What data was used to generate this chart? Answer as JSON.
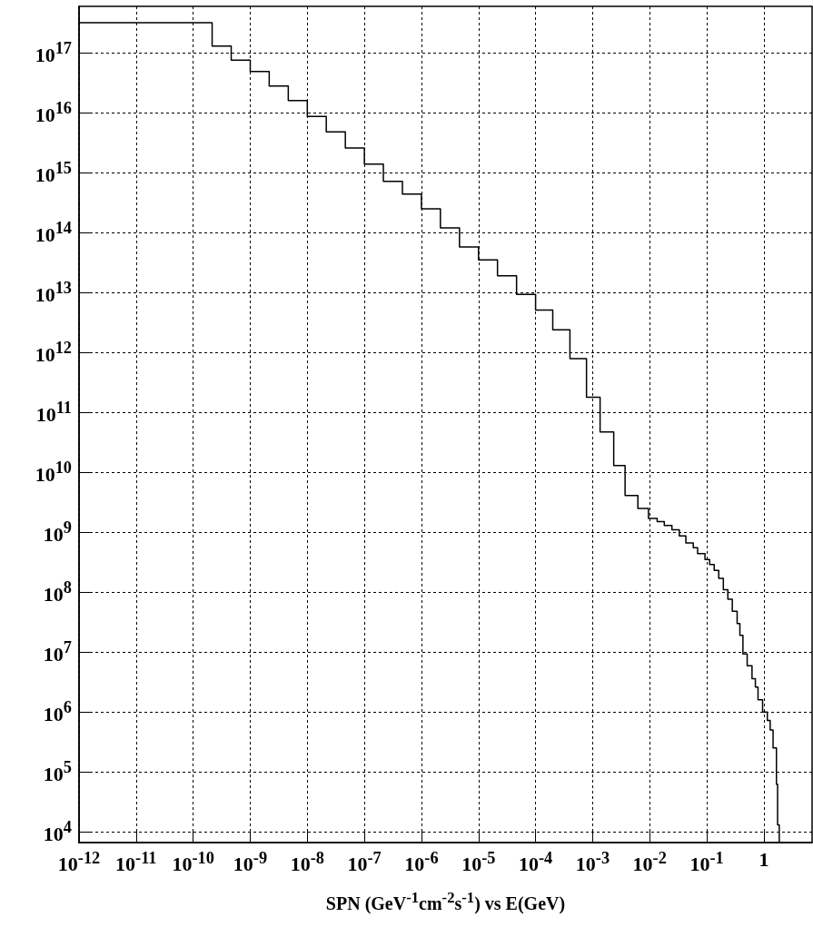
{
  "chart_data": {
    "type": "histogram",
    "xlabel": "SPN (GeV$^{-1}$cm$^{-2}$s$^{-1}$) vs E(GeV)",
    "color": "#000000",
    "log": "xy",
    "grid": true,
    "bins": [
      1e-12,
      2.15e-10,
      4.64e-10,
      1e-09,
      2.15e-09,
      4.64e-09,
      1e-08,
      2.15e-08,
      4.64e-08,
      1e-07,
      2.15e-07,
      4.64e-07,
      1e-06,
      2.15e-06,
      4.64e-06,
      1e-05,
      2.15e-05,
      4.64e-05,
      0.0001,
      0.0002,
      0.0004,
      0.00078,
      0.00135,
      0.00234,
      0.0037,
      0.0062,
      0.0095,
      0.0135,
      0.018,
      0.0245,
      0.033,
      0.043,
      0.058,
      0.069,
      0.093,
      0.112,
      0.135,
      0.162,
      0.195,
      0.234,
      0.28,
      0.34,
      0.38,
      0.43,
      0.51,
      0.62,
      0.71,
      0.79,
      0.95,
      1.15,
      1.29,
      1.45,
      1.66,
      1.74,
      1.86
    ],
    "values": [
      3.2e+17,
      1.3e+17,
      7.6e+16,
      4.9e+16,
      2.8e+16,
      1.6e+16,
      8700000000000000.0,
      4800000000000000.0,
      2600000000000000.0,
      1400000000000000.0,
      720000000000000.0,
      440000000000000.0,
      250000000000000.0,
      120000000000000.0,
      58000000000000.0,
      35000000000000.0,
      19000000000000.0,
      9300000000000.0,
      5100000000000.0,
      2400000000000.0,
      790000000000.0,
      180000000000.0,
      47000000000.0,
      13000000000.0,
      4100000000.0,
      2500000000.0,
      1700000000.0,
      1500000000.0,
      1300000000.0,
      1100000000.0,
      870000000.0,
      660000000.0,
      550000000.0,
      440000000.0,
      350000000.0,
      290000000.0,
      230000000.0,
      170000000.0,
      110000000.0,
      76000000.0,
      48000000.0,
      30000000.0,
      19000000.0,
      9300000.0,
      5900000.0,
      3600000.0,
      2600000.0,
      1600000.0,
      1000000.0,
      720000.0,
      500000.0,
      250000.0,
      62000.0,
      13000.0
    ],
    "xlim": [
      1e-12,
      7
    ],
    "ylim": [
      6600.0,
      6e+17
    ],
    "xticks": [
      {
        "value": 1e-12,
        "label": "10$^{-12}$"
      },
      {
        "value": 1e-11,
        "label": "10$^{-11}$"
      },
      {
        "value": 1e-10,
        "label": "10$^{-10}$"
      },
      {
        "value": 1e-09,
        "label": "10$^{-9}$"
      },
      {
        "value": 1e-08,
        "label": "10$^{-8}$"
      },
      {
        "value": 1e-07,
        "label": "10$^{-7}$"
      },
      {
        "value": 1e-06,
        "label": "10$^{-6}$"
      },
      {
        "value": 1e-05,
        "label": "10$^{-5}$"
      },
      {
        "value": 0.0001,
        "label": "10$^{-4}$"
      },
      {
        "value": 0.001,
        "label": "10$^{-3}$"
      },
      {
        "value": 0.01,
        "label": "10$^{-2}$"
      },
      {
        "value": 0.1,
        "label": "10$^{-1}$"
      },
      1
    ],
    "yticks": [
      {
        "value": 10000.0,
        "label": "10$^{4}$"
      },
      {
        "value": 100000.0,
        "label": "10$^{5}$"
      },
      {
        "value": 1000000.0,
        "label": "10$^{6}$"
      },
      {
        "value": 10000000.0,
        "label": "10$^{7}$"
      },
      {
        "value": 100000000.0,
        "label": "10$^{8}$"
      },
      {
        "value": 1000000000.0,
        "label": "10$^{9}$"
      },
      {
        "value": 10000000000.0,
        "label": "10$^{10}$"
      },
      {
        "value": 100000000000.0,
        "label": "10$^{11}$"
      },
      {
        "value": 1000000000000.0,
        "label": "10$^{12}$"
      },
      {
        "value": 10000000000000.0,
        "label": "10$^{13}$"
      },
      {
        "value": 100000000000000.0,
        "label": "10$^{14}$"
      },
      {
        "value": 1000000000000000.0,
        "label": "10$^{15}$"
      },
      {
        "value": 1e+16,
        "label": "10$^{16}$"
      },
      {
        "value": 1e+17,
        "label": "10$^{17}$"
      }
    ]
  }
}
